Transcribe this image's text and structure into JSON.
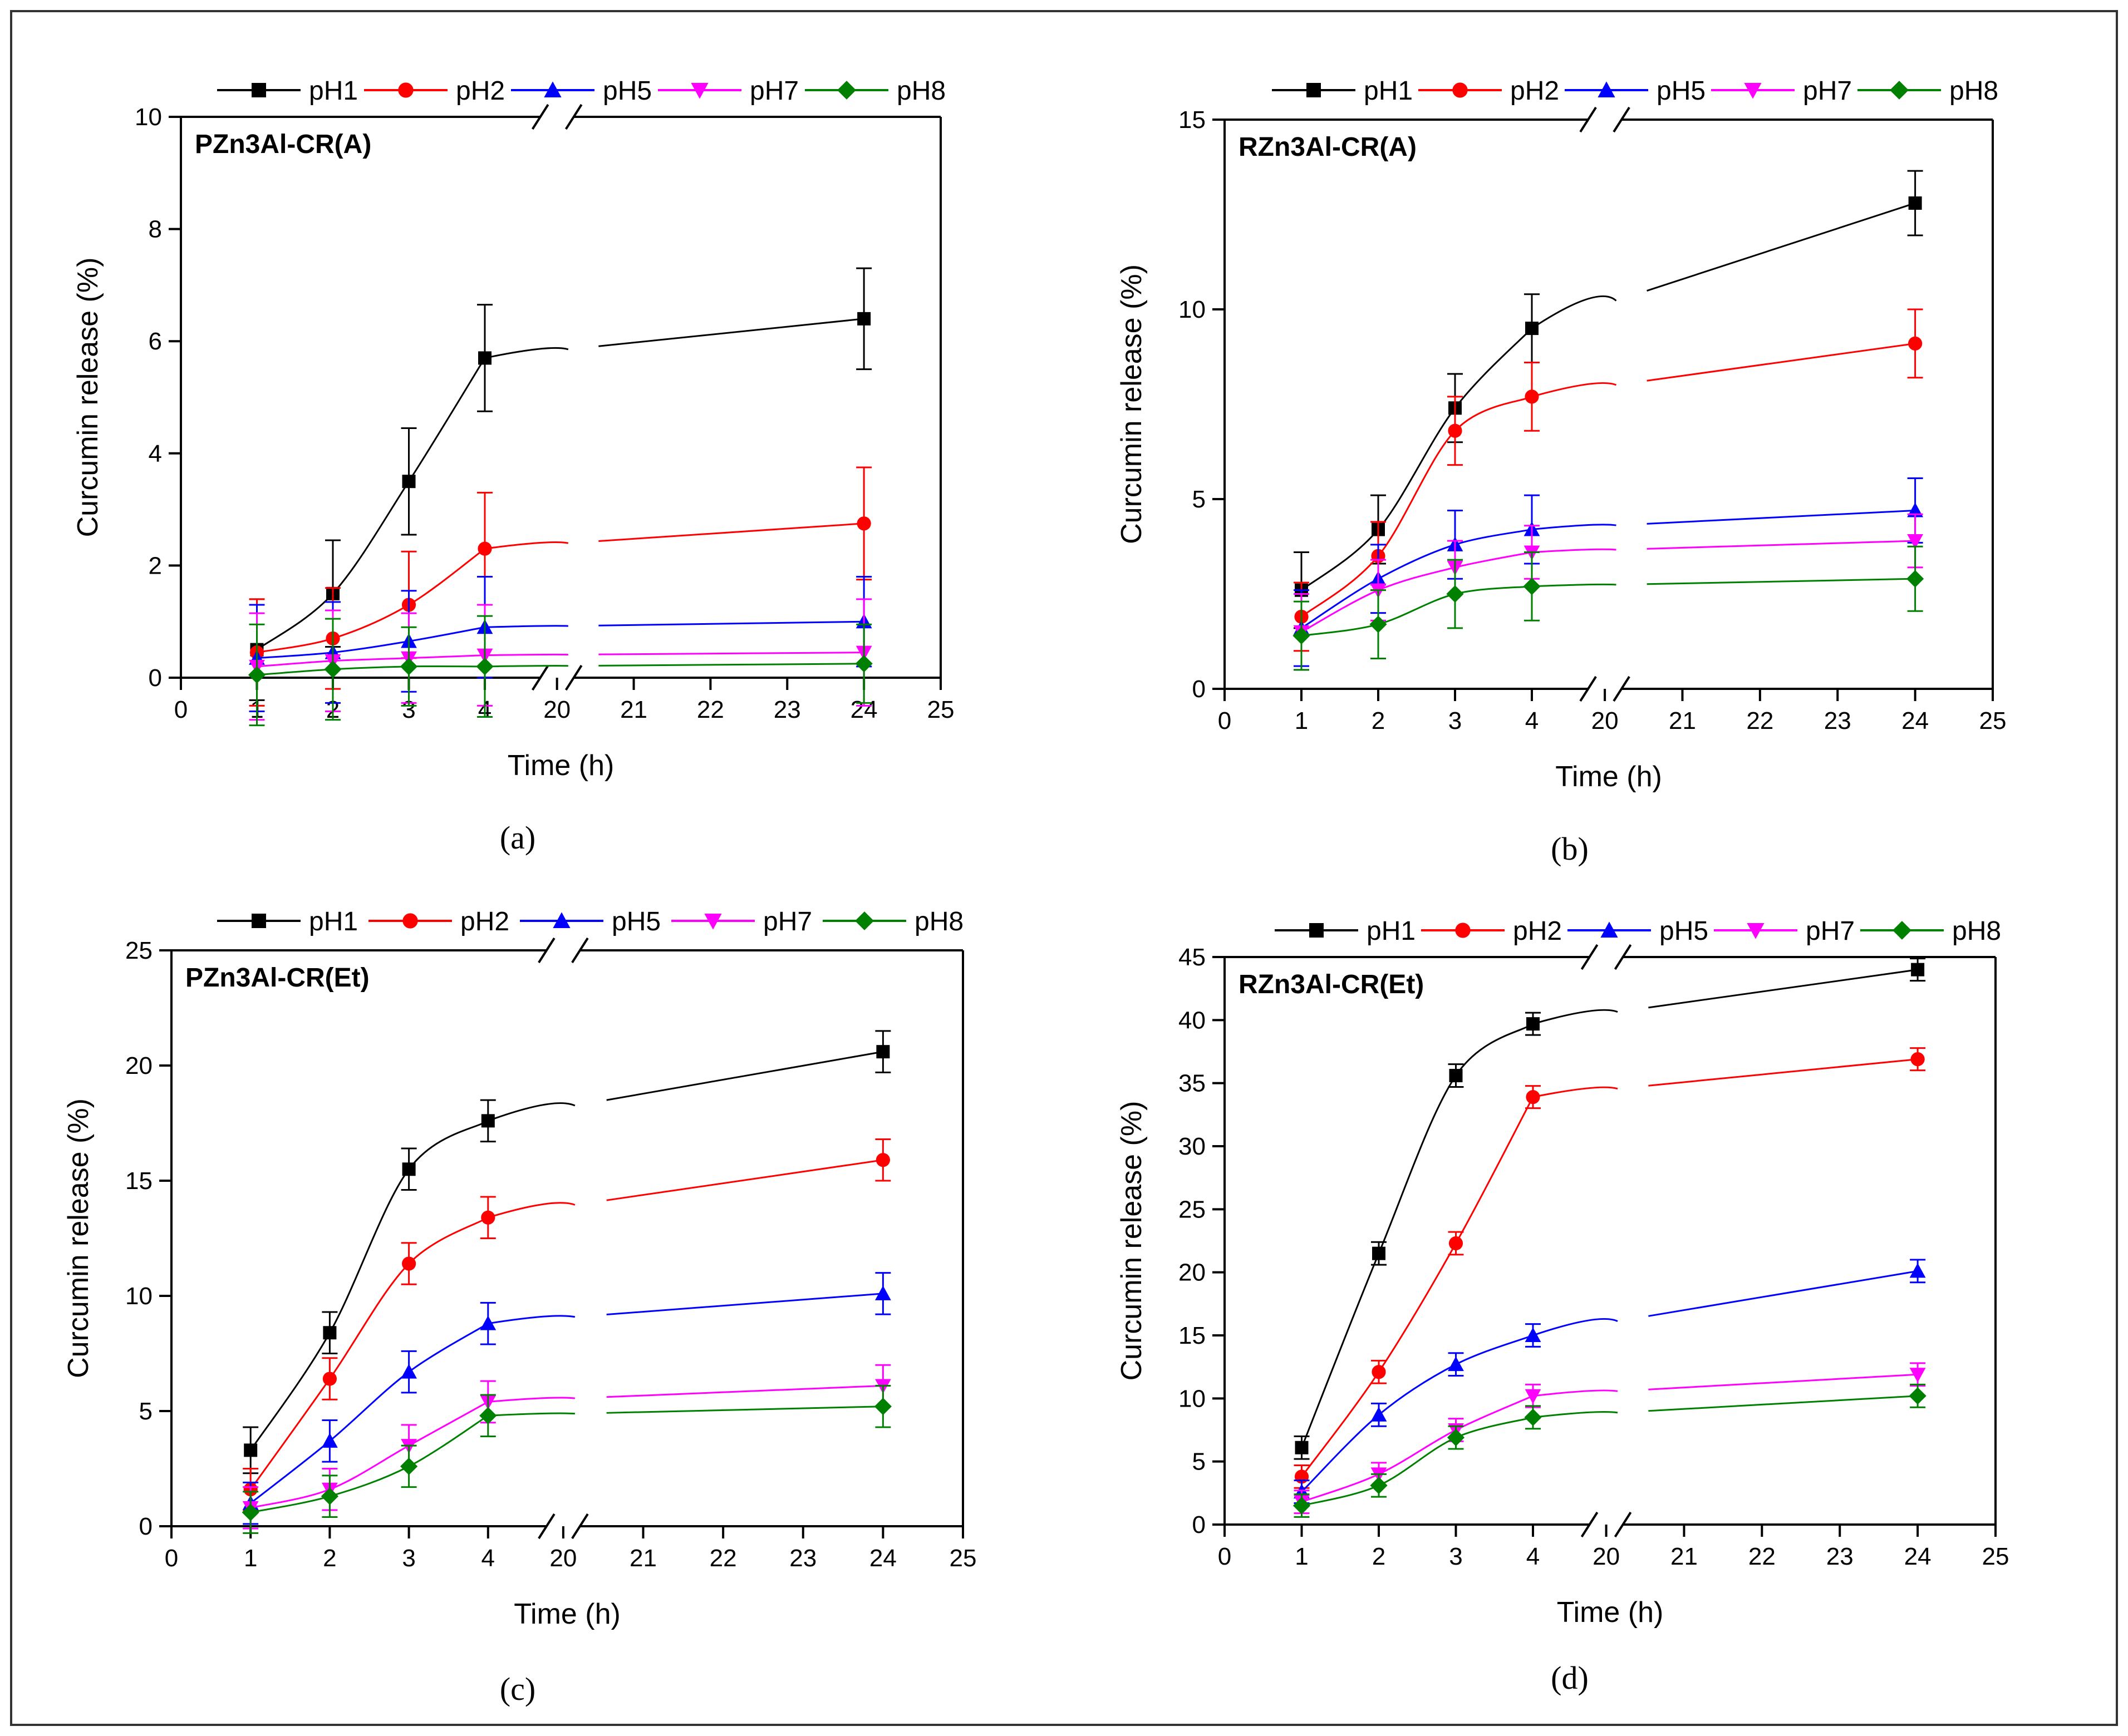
{
  "figure": {
    "legend": [
      "pH1",
      "pH2",
      "pH5",
      "pH7",
      "pH8"
    ],
    "colors": {
      "pH1": "#000000",
      "pH2": "#ff0000",
      "pH5": "#0000ff",
      "pH7": "#ff00ff",
      "pH8": "#008000"
    },
    "markers": {
      "pH1": "square",
      "pH2": "circle",
      "pH5": "triangle-up",
      "pH7": "triangle-down",
      "pH8": "diamond"
    }
  },
  "chart_data": [
    {
      "type": "line",
      "panel_label": "(a)",
      "title": "PZn3Al-CR(A)",
      "xlabel": "Time (h)",
      "ylabel": "Curcumin release (%)",
      "x_broken_axis": true,
      "x_ticks": [
        "0",
        "1",
        "2",
        "3",
        "4",
        "20",
        "21",
        "22",
        "23",
        "24",
        "25"
      ],
      "y_ticks": [
        "0",
        "2",
        "4",
        "6",
        "8",
        "10"
      ],
      "ylim": [
        0,
        10
      ],
      "x": [
        1,
        2,
        3,
        4,
        24
      ],
      "series": [
        {
          "name": "pH1",
          "values": [
            0.5,
            1.5,
            3.5,
            5.7,
            6.4
          ],
          "errors": [
            0.9,
            0.95,
            0.95,
            0.95,
            0.9
          ]
        },
        {
          "name": "pH2",
          "values": [
            0.45,
            0.7,
            1.3,
            2.3,
            2.75
          ],
          "errors": [
            0.95,
            0.9,
            0.95,
            1.0,
            1.0
          ]
        },
        {
          "name": "pH5",
          "values": [
            0.35,
            0.45,
            0.65,
            0.9,
            1.0
          ],
          "errors": [
            0.95,
            0.9,
            0.9,
            0.9,
            0.8
          ]
        },
        {
          "name": "pH7",
          "values": [
            0.2,
            0.3,
            0.35,
            0.4,
            0.45
          ],
          "errors": [
            0.95,
            0.9,
            0.8,
            0.9,
            0.95
          ]
        },
        {
          "name": "pH8",
          "values": [
            0.05,
            0.15,
            0.2,
            0.2,
            0.25
          ],
          "errors": [
            0.9,
            0.9,
            0.7,
            0.9,
            0.7
          ]
        }
      ]
    },
    {
      "type": "line",
      "panel_label": "(b)",
      "title": "RZn3Al-CR(A)",
      "xlabel": "Time (h)",
      "ylabel": "Curcumin release (%)",
      "x_broken_axis": true,
      "x_ticks": [
        "0",
        "1",
        "2",
        "3",
        "4",
        "20",
        "21",
        "22",
        "23",
        "24",
        "25"
      ],
      "y_ticks": [
        "0",
        "5",
        "10",
        "15"
      ],
      "ylim": [
        0,
        15
      ],
      "x": [
        1,
        2,
        3,
        4,
        24
      ],
      "series": [
        {
          "name": "pH1",
          "values": [
            2.6,
            4.2,
            7.4,
            9.5,
            12.8
          ],
          "errors": [
            1.0,
            0.9,
            0.9,
            0.9,
            0.85
          ]
        },
        {
          "name": "pH2",
          "values": [
            1.9,
            3.5,
            6.8,
            7.7,
            9.1
          ],
          "errors": [
            0.9,
            0.9,
            0.9,
            0.9,
            0.9
          ]
        },
        {
          "name": "pH5",
          "values": [
            1.6,
            2.9,
            3.8,
            4.2,
            4.7
          ],
          "errors": [
            1.0,
            0.9,
            0.9,
            0.9,
            0.85
          ]
        },
        {
          "name": "pH7",
          "values": [
            1.5,
            2.6,
            3.2,
            3.6,
            3.9
          ],
          "errors": [
            1.0,
            0.8,
            0.7,
            0.7,
            0.7
          ]
        },
        {
          "name": "pH8",
          "values": [
            1.4,
            1.7,
            2.5,
            2.7,
            2.9
          ],
          "errors": [
            0.9,
            0.9,
            0.9,
            0.9,
            0.85
          ]
        }
      ]
    },
    {
      "type": "line",
      "panel_label": "(c)",
      "title": "PZn3Al-CR(Et)",
      "xlabel": "Time (h)",
      "ylabel": "Curcumin release (%)",
      "x_broken_axis": true,
      "x_ticks": [
        "0",
        "1",
        "2",
        "3",
        "4",
        "20",
        "21",
        "22",
        "23",
        "24",
        "25"
      ],
      "y_ticks": [
        "0",
        "5",
        "10",
        "15",
        "20",
        "25"
      ],
      "ylim": [
        0,
        25
      ],
      "x": [
        1,
        2,
        3,
        4,
        24
      ],
      "series": [
        {
          "name": "pH1",
          "values": [
            3.3,
            8.4,
            15.5,
            17.6,
            20.6
          ],
          "errors": [
            1.0,
            0.9,
            0.9,
            0.9,
            0.9
          ]
        },
        {
          "name": "pH2",
          "values": [
            1.6,
            6.4,
            11.4,
            13.4,
            15.9
          ],
          "errors": [
            0.9,
            0.9,
            0.9,
            0.9,
            0.9
          ]
        },
        {
          "name": "pH5",
          "values": [
            1.0,
            3.7,
            6.7,
            8.8,
            10.1
          ],
          "errors": [
            0.9,
            0.9,
            0.9,
            0.9,
            0.9
          ]
        },
        {
          "name": "pH7",
          "values": [
            0.8,
            1.6,
            3.5,
            5.4,
            6.1
          ],
          "errors": [
            0.9,
            0.9,
            0.9,
            0.9,
            0.9
          ]
        },
        {
          "name": "pH8",
          "values": [
            0.6,
            1.3,
            2.6,
            4.8,
            5.2
          ],
          "errors": [
            0.9,
            0.9,
            0.9,
            0.9,
            0.9
          ]
        }
      ]
    },
    {
      "type": "line",
      "panel_label": "(d)",
      "title": "RZn3Al-CR(Et)",
      "xlabel": "Time (h)",
      "ylabel": "Curcumin release (%)",
      "x_broken_axis": true,
      "x_ticks": [
        "0",
        "1",
        "2",
        "3",
        "4",
        "20",
        "21",
        "22",
        "23",
        "24",
        "25"
      ],
      "y_ticks": [
        "0",
        "5",
        "10",
        "15",
        "20",
        "25",
        "30",
        "35",
        "40",
        "45"
      ],
      "ylim": [
        0,
        45
      ],
      "x": [
        1,
        2,
        3,
        4,
        24
      ],
      "series": [
        {
          "name": "pH1",
          "values": [
            6.1,
            21.5,
            35.6,
            39.7,
            44.0
          ],
          "errors": [
            0.9,
            0.9,
            0.9,
            0.8,
            0.8
          ]
        },
        {
          "name": "pH2",
          "values": [
            3.8,
            12.1,
            22.3,
            33.9,
            36.9
          ],
          "errors": [
            0.9,
            0.9,
            0.9,
            0.8,
            0.8
          ]
        },
        {
          "name": "pH5",
          "values": [
            2.6,
            8.7,
            12.7,
            15.0,
            20.1
          ],
          "errors": [
            0.9,
            0.9,
            0.9,
            0.9,
            0.9
          ]
        },
        {
          "name": "pH7",
          "values": [
            1.8,
            4.0,
            7.5,
            10.2,
            11.9
          ],
          "errors": [
            0.9,
            0.9,
            0.9,
            0.9,
            0.9
          ]
        },
        {
          "name": "pH8",
          "values": [
            1.5,
            3.1,
            6.9,
            8.5,
            10.2
          ],
          "errors": [
            0.9,
            0.9,
            0.9,
            0.9,
            0.9
          ]
        }
      ]
    }
  ]
}
